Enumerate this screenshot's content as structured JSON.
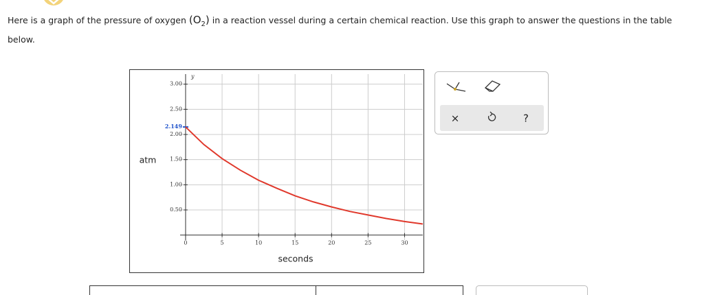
{
  "instruction": {
    "before": "Here is a graph of the pressure of oxygen",
    "formula": "O",
    "subscript": "2",
    "after": "in a reaction vessel during a certain chemical reaction. Use this graph to answer the questions in the table below."
  },
  "chart_data": {
    "type": "line",
    "xlabel": "seconds",
    "ylabel": "atm",
    "y_axis_name": "y",
    "x": [
      0,
      2.5,
      5,
      7.5,
      10,
      12.5,
      15,
      17.5,
      20,
      22.5,
      25,
      27.5,
      30,
      32.5
    ],
    "series": [
      {
        "color": "#e0382b",
        "values": [
          2.149,
          1.8,
          1.52,
          1.29,
          1.09,
          0.93,
          0.78,
          0.66,
          0.56,
          0.47,
          0.4,
          0.33,
          0.27,
          0.22
        ]
      }
    ],
    "annotation": {
      "value": 2.149,
      "label": "2.149",
      "color": "#2255cc"
    },
    "xlim": [
      -0.75,
      32.5
    ],
    "ylim": [
      -0.1,
      3.2
    ],
    "xticks": [
      0,
      5,
      10,
      15,
      20,
      25,
      30
    ],
    "yticks": [
      {
        "value": 0.5,
        "label": "0.50"
      },
      {
        "value": 1,
        "label": "1.00"
      },
      {
        "value": 1.5,
        "label": "1.50"
      },
      {
        "value": 2,
        "label": "2.00"
      },
      {
        "value": 2.5,
        "label": "2.50"
      },
      {
        "value": 3,
        "label": "3.00"
      }
    ],
    "grid": true
  },
  "tools": [
    "×",
    "?"
  ]
}
